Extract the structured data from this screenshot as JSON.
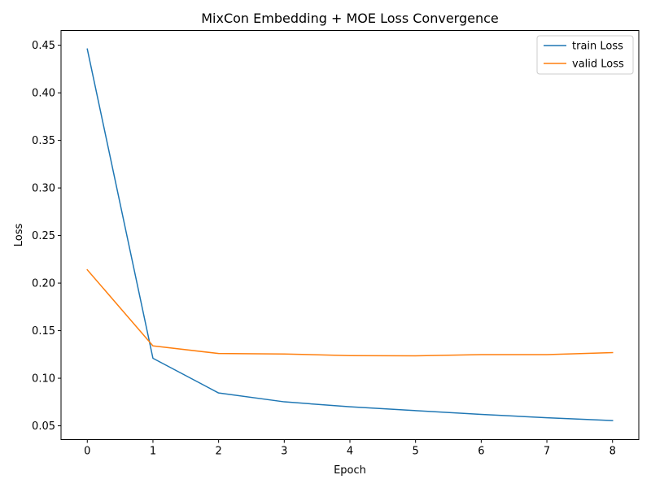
{
  "chart_data": {
    "type": "line",
    "title": "MixCon Embedding + MOE Loss Convergence",
    "xlabel": "Epoch",
    "ylabel": "Loss",
    "x": [
      0,
      1,
      2,
      3,
      4,
      5,
      6,
      7,
      8
    ],
    "xticks": [
      "0",
      "1",
      "2",
      "3",
      "4",
      "5",
      "6",
      "7",
      "8"
    ],
    "yticks": [
      "0.05",
      "0.10",
      "0.15",
      "0.20",
      "0.25",
      "0.30",
      "0.35",
      "0.40",
      "0.45"
    ],
    "ytick_values": [
      0.05,
      0.1,
      0.15,
      0.2,
      0.25,
      0.3,
      0.35,
      0.4,
      0.45
    ],
    "xlim": [
      -0.4,
      8.4
    ],
    "ylim": [
      0.0355,
      0.4655
    ],
    "grid": false,
    "legend_position": "top-right",
    "series": [
      {
        "name": "train Loss",
        "color": "#1f77b4",
        "values": [
          0.446,
          0.121,
          0.0845,
          0.0752,
          0.07,
          0.066,
          0.062,
          0.0585,
          0.0555
        ]
      },
      {
        "name": "valid Loss",
        "color": "#ff7f0e",
        "values": [
          0.214,
          0.134,
          0.126,
          0.1255,
          0.1238,
          0.1235,
          0.1248,
          0.1248,
          0.127
        ]
      }
    ]
  }
}
